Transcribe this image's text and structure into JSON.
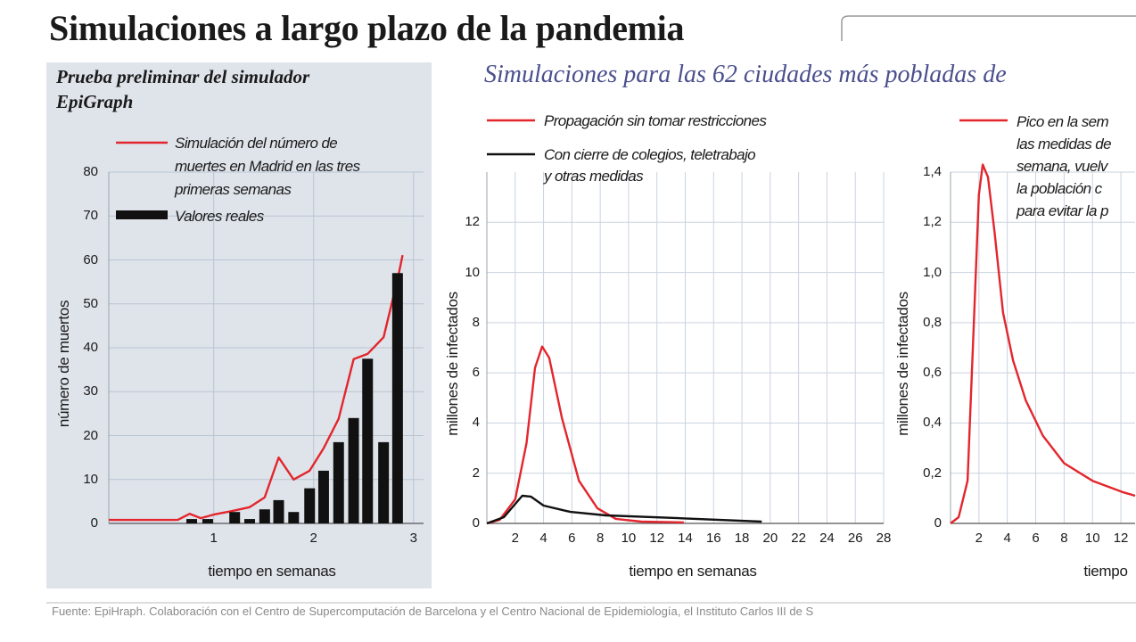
{
  "title": "Simulaciones a largo plazo de la pandemia",
  "subtitle": "Simulaciones para las 62 ciudades más pobladas de",
  "source": "Fuente: EpiHraph. Colaboración con el Centro de Supercomputación de Barcelona y el Centro Nacional de Epidemiología, el Instituto Carlos III de S",
  "chart_data": [
    {
      "type": "combo",
      "title": "Prueba preliminar del simulador\nEpiGraph",
      "x_label": "tiempo en semanas",
      "y_label": "número de muertos",
      "xlim": [
        -0.05,
        3.1
      ],
      "xticks": [
        1,
        2,
        3
      ],
      "ylim": [
        0,
        80
      ],
      "yticks": [
        0,
        10,
        20,
        30,
        40,
        50,
        60,
        70,
        80
      ],
      "grid": true,
      "series": [
        {
          "name": "Simulación del número de\nmuertes en Madrid en las tres\nprimeras semanas",
          "type": "line",
          "color": "#e3262d",
          "x": [
            -0.05,
            0.64,
            0.76,
            0.87,
            1.0,
            1.18,
            1.36,
            1.51,
            1.65,
            1.8,
            1.96,
            2.1,
            2.25,
            2.4,
            2.54,
            2.7,
            2.84,
            2.89
          ],
          "values": [
            0.8,
            0.8,
            2.2,
            1.2,
            2.0,
            2.8,
            3.7,
            5.9,
            15.0,
            10.0,
            12.0,
            17.1,
            23.8,
            37.4,
            38.6,
            42.4,
            55.6,
            61.1
          ]
        },
        {
          "name": "Valores reales",
          "type": "bar",
          "color": "#111111",
          "x": [
            0.78,
            0.94,
            1.21,
            1.36,
            1.51,
            1.65,
            1.8,
            1.96,
            2.1,
            2.25,
            2.4,
            2.54,
            2.7,
            2.84
          ],
          "values": [
            1,
            1,
            2.6,
            1,
            3.2,
            5.3,
            2.6,
            8,
            12,
            18.5,
            24,
            37.5,
            18.5,
            57
          ]
        }
      ]
    },
    {
      "type": "line",
      "x_label": "tiempo en semanas",
      "y_label": "millones de infectados",
      "xlim": [
        0,
        28
      ],
      "xticks": [
        2,
        4,
        6,
        8,
        10,
        12,
        14,
        16,
        18,
        20,
        22,
        24,
        26,
        28
      ],
      "ylim": [
        0,
        14
      ],
      "yticks": [
        0,
        2,
        4,
        6,
        8,
        10,
        12
      ],
      "grid": true,
      "series": [
        {
          "name": "Propagación sin tomar restricciones",
          "color": "#e3262d",
          "x": [
            0,
            0.9,
            2.0,
            2.8,
            3.4,
            3.9,
            4.4,
            5.3,
            6.5,
            7.8,
            9.1,
            10.9,
            13.9
          ],
          "values": [
            0,
            0.14,
            0.96,
            3.2,
            6.2,
            7.05,
            6.6,
            4.2,
            1.7,
            0.6,
            0.18,
            0.07,
            0.04
          ]
        },
        {
          "name": "Con cierre de colegios, teletrabajo\ny otras medidas",
          "color": "#111111",
          "x": [
            0,
            1.2,
            2.5,
            3.1,
            4.0,
            5.9,
            8.4,
            13.5,
            19.4
          ],
          "values": [
            0,
            0.25,
            1.1,
            1.07,
            0.71,
            0.46,
            0.32,
            0.21,
            0.07
          ]
        }
      ]
    },
    {
      "type": "line",
      "x_label": "tiempo",
      "y_label": "millones de infectados",
      "xlim": [
        0,
        13
      ],
      "xticks": [
        2,
        4,
        6,
        8,
        10,
        12
      ],
      "ylim": [
        0,
        1.4
      ],
      "yticks": [
        0,
        {
          "value": 0.2,
          "label": "0,2"
        },
        {
          "value": 0.4,
          "label": "0,4"
        },
        {
          "value": 0.6,
          "label": "0,6"
        },
        {
          "value": 0.8,
          "label": "0,8"
        },
        {
          "value": 1.0,
          "label": "1,0"
        },
        {
          "value": 1.2,
          "label": "1,2"
        },
        {
          "value": 1.4,
          "label": "1,4"
        }
      ],
      "grid": true,
      "series": [
        {
          "name": "Pico en la sem\nlas medidas de\nsemana, vuelv\nla población c\npara evitar la p",
          "color": "#e3262d",
          "x": [
            0,
            0.57,
            1.2,
            1.6,
            2.0,
            2.27,
            2.64,
            3.1,
            3.7,
            4.4,
            5.3,
            6.5,
            8.0,
            10.0,
            12.1,
            13.0
          ],
          "values": [
            0,
            0.025,
            0.17,
            0.74,
            1.31,
            1.43,
            1.38,
            1.16,
            0.84,
            0.65,
            0.49,
            0.35,
            0.24,
            0.17,
            0.125,
            0.11
          ]
        }
      ]
    }
  ]
}
